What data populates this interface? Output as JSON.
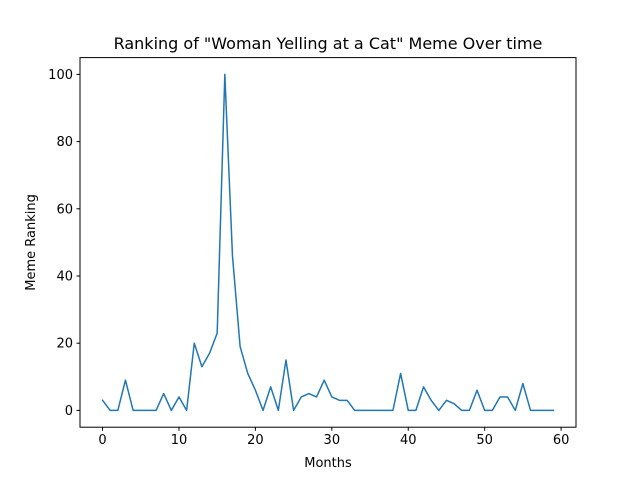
{
  "chart_data": {
    "type": "line",
    "title": "Ranking of \"Woman Yelling at a Cat\" Meme Over time",
    "xlabel": "Months",
    "ylabel": "Meme Ranking",
    "xlim": [
      -2.95,
      61.95
    ],
    "ylim": [
      -5,
      105
    ],
    "xticks": [
      0,
      10,
      20,
      30,
      40,
      50,
      60
    ],
    "yticks": [
      0,
      20,
      40,
      60,
      80,
      100
    ],
    "grid": false,
    "series": [
      {
        "color": "#1f77b4",
        "x": [
          0,
          1,
          2,
          3,
          4,
          5,
          6,
          7,
          8,
          9,
          10,
          11,
          12,
          13,
          14,
          15,
          16,
          17,
          18,
          19,
          20,
          21,
          22,
          23,
          24,
          25,
          26,
          27,
          28,
          29,
          30,
          31,
          32,
          33,
          34,
          35,
          36,
          37,
          38,
          39,
          40,
          41,
          42,
          43,
          44,
          45,
          46,
          47,
          48,
          49,
          50,
          51,
          52,
          53,
          54,
          55,
          56,
          57,
          58,
          59
        ],
        "values": [
          3,
          0,
          0,
          9,
          0,
          0,
          0,
          0,
          5,
          0,
          4,
          0,
          20,
          13,
          17,
          23,
          100,
          46,
          19,
          11,
          6,
          0,
          7,
          0,
          15,
          0,
          4,
          5,
          4,
          9,
          4,
          3,
          3,
          0,
          0,
          0,
          0,
          0,
          0,
          11,
          0,
          0,
          7,
          3,
          0,
          3,
          2,
          0,
          0,
          6,
          0,
          0,
          4,
          4,
          0,
          8,
          0,
          0,
          0,
          0
        ]
      }
    ]
  }
}
